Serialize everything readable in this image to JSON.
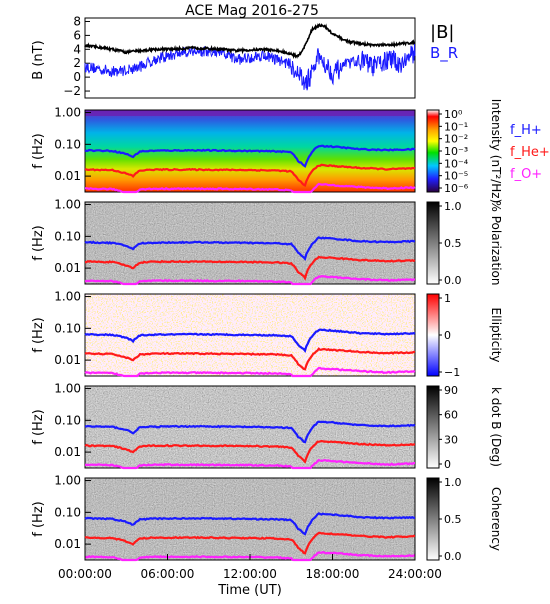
{
  "title": "ACE Mag 2016-275",
  "xlabel": "Time (UT)",
  "xticks": [
    "00:00:00",
    "06:00:00",
    "12:00:00",
    "18:00:00",
    "24:00:00"
  ],
  "freq_ticks": [
    "1.00",
    "0.10",
    "0.01"
  ],
  "colors": {
    "B_total": "#000000",
    "B_R": "#1a1aff",
    "f_H": "#1a1aff",
    "f_He": "#ff1a1a",
    "f_O": "#ff22ff"
  },
  "panels": {
    "mag": {
      "ylabel": "B (nT)",
      "yticks": [
        "8",
        "6",
        "4",
        "2",
        "0",
        "−2"
      ],
      "legend": [
        "|B|",
        "B_R"
      ]
    },
    "intensity": {
      "ylabel": "f (Hz)",
      "cbar_label": "Intensity (nT²/Hz)",
      "cbar_ticks": [
        "10⁰",
        "10⁻¹",
        "10⁻²",
        "10⁻³",
        "10⁻⁴",
        "10⁻⁵",
        "10⁻⁶"
      ],
      "legend": [
        "f_H+",
        "f_He+",
        "f_O+"
      ]
    },
    "polarization": {
      "ylabel": "f (Hz)",
      "cbar_label": "% Polarization",
      "cbar_ticks": [
        "1.0",
        "0.5",
        "0.0"
      ]
    },
    "ellipticity": {
      "ylabel": "f (Hz)",
      "cbar_label": "Ellipticity",
      "cbar_ticks": [
        "1",
        "0",
        "−1"
      ]
    },
    "kdotb": {
      "ylabel": "f (Hz)",
      "cbar_label": "k dot B (Deg)",
      "cbar_ticks": [
        "90",
        "60",
        "30",
        "0"
      ]
    },
    "coherency": {
      "ylabel": "f (Hz)",
      "cbar_label": "Coherency",
      "cbar_ticks": [
        "1.0",
        "0.5",
        "0.0"
      ]
    }
  },
  "chart_data": {
    "type": "line",
    "x_unit": "hours UT",
    "xlim": [
      0,
      24
    ],
    "mag": {
      "ylim": [
        -3,
        8.5
      ],
      "series": [
        {
          "name": "|B|",
          "x": [
            0,
            1,
            2,
            3,
            4,
            5,
            6,
            7,
            8,
            9,
            10,
            11,
            12,
            13,
            14,
            15,
            15.5,
            16,
            16.5,
            17,
            17.5,
            18,
            19,
            20,
            21,
            22,
            23,
            24
          ],
          "values": [
            4.5,
            4.3,
            4.0,
            3.6,
            3.8,
            4.0,
            4.0,
            4.1,
            4.2,
            4.1,
            4.0,
            3.8,
            3.9,
            4.0,
            3.8,
            3.3,
            3.0,
            4.5,
            6.8,
            7.5,
            7.2,
            6.2,
            5.2,
            4.8,
            4.6,
            4.6,
            4.8,
            5.0
          ]
        },
        {
          "name": "B_R",
          "x": [
            0,
            1,
            2,
            3,
            4,
            5,
            6,
            7,
            8,
            9,
            10,
            11,
            12,
            13,
            14,
            15,
            15.5,
            16,
            16.5,
            17,
            17.5,
            18,
            19,
            20,
            21,
            22,
            23,
            24
          ],
          "values": [
            1.5,
            1.2,
            0.8,
            1.0,
            1.5,
            2.5,
            3.0,
            3.5,
            3.8,
            3.5,
            3.5,
            2.5,
            2.8,
            3.2,
            2.5,
            1.8,
            0.5,
            -1.0,
            0.5,
            3.0,
            2.0,
            0.5,
            1.8,
            2.5,
            1.5,
            2.5,
            2.0,
            3.5
          ]
        }
      ]
    },
    "frequency_lines": {
      "ylim_log10": [
        -2.5,
        0.08
      ],
      "series": [
        {
          "name": "f_H+",
          "x": [
            0,
            2,
            3,
            3.5,
            4,
            5,
            8,
            12,
            14,
            15,
            15.5,
            16,
            16.5,
            17,
            18,
            20,
            22,
            24
          ],
          "values": [
            0.065,
            0.062,
            0.05,
            0.04,
            0.06,
            0.063,
            0.065,
            0.062,
            0.06,
            0.057,
            0.03,
            0.02,
            0.055,
            0.09,
            0.085,
            0.07,
            0.066,
            0.07
          ]
        },
        {
          "name": "f_He+",
          "x": [
            0,
            2,
            3,
            3.5,
            4,
            5,
            8,
            12,
            14,
            15,
            15.5,
            16,
            16.5,
            17,
            18,
            20,
            22,
            24
          ],
          "values": [
            0.016,
            0.0155,
            0.012,
            0.01,
            0.015,
            0.016,
            0.016,
            0.0155,
            0.015,
            0.014,
            0.0075,
            0.005,
            0.014,
            0.022,
            0.021,
            0.018,
            0.0165,
            0.0175
          ]
        },
        {
          "name": "f_O+",
          "x": [
            0,
            2,
            3,
            3.5,
            4,
            5,
            8,
            12,
            14,
            15,
            15.5,
            16,
            16.5,
            17,
            18,
            20,
            22,
            24
          ],
          "values": [
            0.004,
            0.0039,
            0.003,
            0.0025,
            0.0038,
            0.004,
            0.004,
            0.0039,
            0.0038,
            0.0035,
            0.0019,
            0.0013,
            0.0035,
            0.0055,
            0.0052,
            0.0045,
            0.0041,
            0.0044
          ]
        }
      ]
    }
  }
}
